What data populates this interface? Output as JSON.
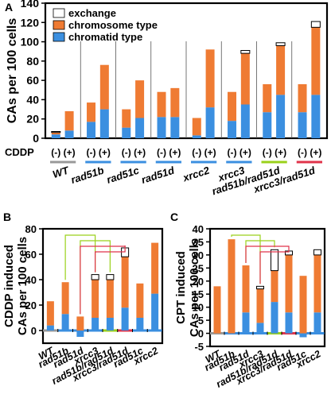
{
  "chart_data": [
    {
      "id": "A",
      "panel_label": "A",
      "type": "bar",
      "stacked": true,
      "ylabel": "CAs per 100 cells",
      "ylim": [
        0,
        140
      ],
      "yticks": [
        0,
        20,
        40,
        60,
        80,
        100,
        120,
        140
      ],
      "treatment_label": "CDDP",
      "treatment_labels": [
        "(-)",
        "(+)"
      ],
      "legend": [
        "exchange",
        "chromosome type",
        "chromatid type"
      ],
      "legend_position": "top-left",
      "groups": [
        {
          "name": "WT",
          "color": "#999999",
          "minus": {
            "chromatid": 4,
            "chromosome": 2,
            "exchange": 1
          },
          "plus": {
            "chromatid": 8,
            "chromosome": 20,
            "exchange": 0
          }
        },
        {
          "name": "rad51b",
          "color": "#3b8fe0",
          "minus": {
            "chromatid": 17,
            "chromosome": 20,
            "exchange": 0
          },
          "plus": {
            "chromatid": 30,
            "chromosome": 46,
            "exchange": 0
          }
        },
        {
          "name": "rad51c",
          "color": "#3b8fe0",
          "minus": {
            "chromatid": 11,
            "chromosome": 19,
            "exchange": 0
          },
          "plus": {
            "chromatid": 21,
            "chromosome": 39,
            "exchange": 0
          }
        },
        {
          "name": "rad51d",
          "color": "#3b8fe0",
          "minus": {
            "chromatid": 22,
            "chromosome": 26,
            "exchange": 0
          },
          "plus": {
            "chromatid": 22,
            "chromosome": 30,
            "exchange": 0
          }
        },
        {
          "name": "xrcc2",
          "color": "#3b8fe0",
          "minus": {
            "chromatid": 3,
            "chromosome": 18,
            "exchange": 0
          },
          "plus": {
            "chromatid": 32,
            "chromosome": 60,
            "exchange": 0
          }
        },
        {
          "name": "xrcc3",
          "color": "#3b8fe0",
          "minus": {
            "chromatid": 18,
            "chromosome": 30,
            "exchange": 0
          },
          "plus": {
            "chromatid": 35,
            "chromosome": 53,
            "exchange": 3
          }
        },
        {
          "name": "rad51b/rad51d",
          "color": "#9ad11a",
          "minus": {
            "chromatid": 27,
            "chromosome": 29,
            "exchange": 0
          },
          "plus": {
            "chromatid": 45,
            "chromosome": 51,
            "exchange": 3
          }
        },
        {
          "name": "xrcc3/rad51d",
          "color": "#e0334a",
          "minus": {
            "chromatid": 27,
            "chromosome": 29,
            "exchange": 0
          },
          "plus": {
            "chromatid": 45,
            "chromosome": 70,
            "exchange": 6
          }
        }
      ]
    },
    {
      "id": "B",
      "panel_label": "B",
      "type": "bar",
      "stacked": true,
      "ylabel": [
        "CDDP induced",
        "CAs per 100 cells"
      ],
      "ylim": [
        -10,
        80
      ],
      "yticks": [
        0,
        20,
        40,
        60,
        80
      ],
      "categories": [
        "WT",
        "rad51b",
        "rad51d",
        "xrcc3",
        "rad51b/rad51d",
        "xrcc3/rad51d",
        "rad51c",
        "xrcc2"
      ],
      "category_colors": [
        "#999999",
        "#3b8fe0",
        "#3b8fe0",
        "#3b8fe0",
        "#9ad11a",
        "#e0334a",
        "#3b8fe0",
        "#3b8fe0"
      ],
      "chromatid": [
        4,
        13,
        -5,
        10,
        10,
        18,
        10,
        29
      ],
      "chromosome": [
        19,
        25,
        11,
        30,
        30,
        40,
        27,
        40
      ],
      "exchange": [
        0,
        0,
        0,
        4,
        4,
        7,
        0,
        0
      ],
      "brackets": [
        {
          "from": 1,
          "to": 3,
          "color": "#9ad11a"
        },
        {
          "from": 2,
          "to": 4,
          "color": "#9ad11a"
        },
        {
          "from": 2,
          "to": 5,
          "color": "#e0334a"
        },
        {
          "from": 3,
          "to": 5,
          "color": "#e0334a"
        }
      ]
    },
    {
      "id": "C",
      "panel_label": "C",
      "type": "bar",
      "stacked": true,
      "ylabel": [
        "CPT induced",
        "CAs per 100 cells"
      ],
      "ylim": [
        -5,
        40
      ],
      "yticks": [
        -5,
        0,
        5,
        10,
        15,
        20,
        25,
        30,
        35,
        40
      ],
      "categories": [
        "WT",
        "rad51b",
        "rad51d",
        "xrcc3",
        "rad51b/rad51d",
        "xrcc3/rad51d",
        "rad51c",
        "xrcc2"
      ],
      "category_colors": [
        "#999999",
        "#3b8fe0",
        "#3b8fe0",
        "#3b8fe0",
        "#9ad11a",
        "#e0334a",
        "#3b8fe0",
        "#3b8fe0"
      ],
      "chromatid": [
        0,
        0,
        8,
        4,
        12,
        8,
        -1.5,
        8
      ],
      "chromosome": [
        18,
        36,
        18,
        13,
        12,
        22,
        22,
        22
      ],
      "exchange": [
        0,
        0,
        0,
        1,
        8,
        1.5,
        0,
        2
      ],
      "brackets": [
        {
          "from": 1,
          "to": 3,
          "color": "#9ad11a"
        },
        {
          "from": 2,
          "to": 4,
          "color": "#9ad11a"
        },
        {
          "from": 2,
          "to": 5,
          "color": "#e0334a"
        },
        {
          "from": 3,
          "to": 5,
          "color": "#e0334a"
        }
      ]
    }
  ],
  "colors": {
    "exchange": "#ffffff",
    "chromosome": "#ef7b33",
    "chromatid": "#3b8fe0",
    "axis": "#000000"
  }
}
